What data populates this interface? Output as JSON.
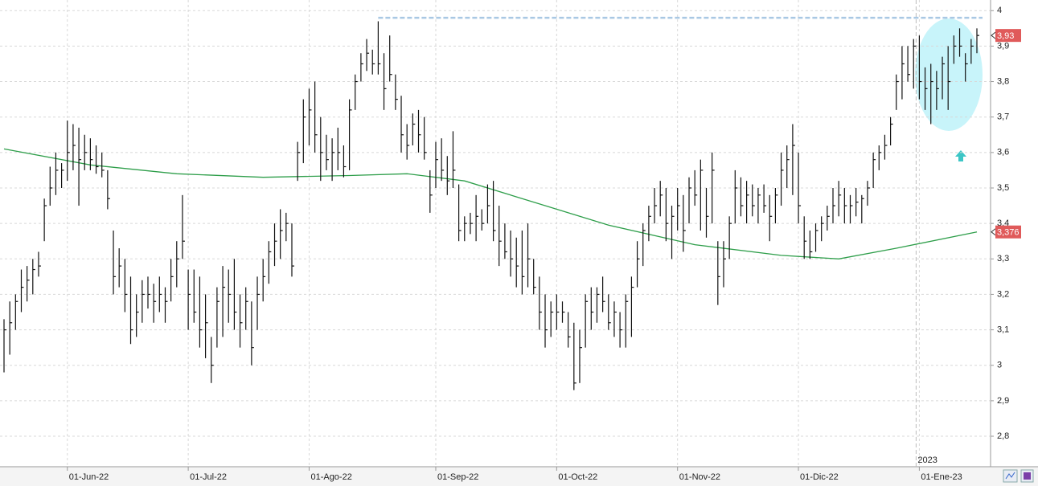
{
  "chart_data": {
    "type": "ohlc",
    "categories": [
      null,
      null,
      null,
      null,
      null,
      null,
      null,
      null,
      null,
      null,
      null,
      "01-Jun-22",
      null,
      null,
      null,
      null,
      null,
      null,
      null,
      null,
      null,
      null,
      null,
      null,
      null,
      null,
      null,
      null,
      null,
      null,
      null,
      null,
      "01-Jul-22",
      null,
      null,
      null,
      null,
      null,
      null,
      null,
      null,
      null,
      null,
      null,
      null,
      null,
      null,
      null,
      null,
      null,
      null,
      null,
      null,
      "01-Ago-22",
      null,
      null,
      null,
      null,
      null,
      null,
      null,
      null,
      null,
      null,
      null,
      null,
      null,
      null,
      null,
      null,
      null,
      null,
      null,
      null,
      null,
      "01-Sep-22",
      null,
      null,
      null,
      null,
      null,
      null,
      null,
      null,
      null,
      null,
      null,
      null,
      null,
      null,
      null,
      null,
      null,
      null,
      null,
      null,
      "01-Oct-22",
      null,
      null,
      null,
      null,
      null,
      null,
      null,
      null,
      null,
      null,
      null,
      null,
      null,
      null,
      null,
      null,
      null,
      null,
      null,
      null,
      "01-Nov-22",
      null,
      null,
      null,
      null,
      null,
      null,
      null,
      null,
      null,
      null,
      null,
      null,
      null,
      null,
      null,
      null,
      null,
      null,
      null,
      null,
      "01-Dic-22",
      null,
      null,
      null,
      null,
      null,
      null,
      null,
      null,
      null,
      null,
      null,
      null,
      null,
      null,
      null,
      null,
      null,
      null,
      null,
      null,
      "01-Ene-23",
      null,
      null,
      null,
      null,
      null,
      null,
      null,
      null,
      null,
      null
    ],
    "high": [
      3.13,
      3.18,
      3.2,
      3.27,
      3.28,
      3.3,
      3.32,
      3.47,
      3.56,
      3.6,
      3.57,
      3.69,
      3.68,
      3.67,
      3.65,
      3.64,
      3.62,
      3.6,
      3.55,
      3.38,
      3.33,
      3.3,
      3.25,
      3.2,
      3.24,
      3.25,
      3.23,
      3.25,
      3.22,
      3.3,
      3.35,
      3.48,
      3.27,
      3.27,
      3.25,
      3.2,
      3.08,
      3.22,
      3.28,
      3.27,
      3.3,
      3.2,
      3.22,
      3.18,
      3.25,
      3.3,
      3.35,
      3.4,
      3.44,
      3.43,
      3.4,
      3.63,
      3.75,
      3.78,
      3.8,
      3.7,
      3.65,
      3.64,
      3.67,
      3.62,
      3.75,
      3.82,
      3.88,
      3.92,
      3.89,
      3.97,
      3.88,
      3.93,
      3.82,
      3.76,
      3.68,
      3.71,
      3.72,
      3.7,
      3.55,
      3.63,
      3.64,
      3.59,
      3.66,
      3.51,
      3.42,
      3.43,
      3.48,
      3.44,
      3.51,
      3.52,
      3.45,
      3.4,
      3.38,
      3.36,
      3.38,
      3.4,
      3.3,
      3.25,
      3.2,
      3.18,
      3.2,
      3.18,
      3.15,
      3.12,
      3.1,
      3.2,
      3.22,
      3.22,
      3.25,
      3.2,
      3.18,
      3.15,
      3.2,
      3.25,
      3.35,
      3.4,
      3.45,
      3.5,
      3.52,
      3.5,
      3.45,
      3.5,
      3.48,
      3.53,
      3.55,
      3.58,
      3.5,
      3.6,
      3.35,
      3.35,
      3.42,
      3.55,
      3.53,
      3.52,
      3.51,
      3.5,
      3.51,
      3.48,
      3.5,
      3.6,
      3.62,
      3.68,
      3.6,
      3.42,
      3.38,
      3.4,
      3.42,
      3.45,
      3.5,
      3.52,
      3.5,
      3.48,
      3.5,
      3.48,
      3.52,
      3.6,
      3.62,
      3.65,
      3.7,
      3.82,
      3.9,
      3.9,
      3.92,
      3.93,
      3.84,
      3.85,
      3.83,
      3.87,
      3.9,
      3.93,
      3.95,
      3.88,
      3.92,
      3.95
    ],
    "low": [
      2.98,
      3.03,
      3.1,
      3.15,
      3.18,
      3.2,
      3.25,
      3.35,
      3.45,
      3.48,
      3.5,
      3.52,
      3.55,
      3.45,
      3.55,
      3.55,
      3.54,
      3.53,
      3.44,
      3.2,
      3.22,
      3.15,
      3.06,
      3.08,
      3.12,
      3.16,
      3.12,
      3.15,
      3.12,
      3.18,
      3.22,
      3.3,
      3.1,
      3.12,
      3.05,
      3.02,
      2.95,
      3.05,
      3.08,
      3.12,
      3.1,
      3.05,
      3.1,
      3.0,
      3.1,
      3.18,
      3.23,
      3.28,
      3.3,
      3.35,
      3.25,
      3.52,
      3.57,
      3.62,
      3.6,
      3.52,
      3.55,
      3.52,
      3.55,
      3.53,
      3.55,
      3.72,
      3.8,
      3.83,
      3.82,
      3.82,
      3.72,
      3.8,
      3.72,
      3.6,
      3.58,
      3.62,
      3.6,
      3.58,
      3.43,
      3.5,
      3.52,
      3.48,
      3.5,
      3.35,
      3.35,
      3.37,
      3.35,
      3.38,
      3.4,
      3.35,
      3.28,
      3.3,
      3.25,
      3.22,
      3.2,
      3.22,
      3.2,
      3.1,
      3.05,
      3.08,
      3.1,
      3.12,
      3.05,
      2.93,
      2.95,
      3.05,
      3.1,
      3.12,
      3.15,
      3.1,
      3.08,
      3.05,
      3.05,
      3.08,
      3.22,
      3.28,
      3.35,
      3.4,
      3.42,
      3.35,
      3.3,
      3.38,
      3.32,
      3.4,
      3.45,
      3.38,
      3.36,
      3.4,
      3.17,
      3.22,
      3.3,
      3.4,
      3.42,
      3.4,
      3.42,
      3.4,
      3.43,
      3.35,
      3.4,
      3.45,
      3.5,
      3.48,
      3.4,
      3.3,
      3.3,
      3.32,
      3.35,
      3.38,
      3.4,
      3.42,
      3.4,
      3.4,
      3.42,
      3.4,
      3.45,
      3.5,
      3.55,
      3.58,
      3.62,
      3.72,
      3.75,
      3.8,
      3.78,
      3.75,
      3.72,
      3.68,
      3.72,
      3.75,
      3.72,
      3.85,
      3.87,
      3.8,
      3.85,
      3.88
    ],
    "close": [
      3.1,
      3.12,
      3.18,
      3.22,
      3.24,
      3.27,
      3.28,
      3.45,
      3.5,
      3.55,
      3.55,
      3.6,
      3.62,
      3.58,
      3.6,
      3.58,
      3.56,
      3.55,
      3.47,
      3.25,
      3.28,
      3.2,
      3.1,
      3.15,
      3.2,
      3.2,
      3.18,
      3.2,
      3.18,
      3.25,
      3.3,
      3.35,
      3.2,
      3.15,
      3.1,
      3.12,
      3.0,
      3.18,
      3.22,
      3.2,
      3.15,
      3.12,
      3.18,
      3.05,
      3.2,
      3.25,
      3.32,
      3.35,
      3.38,
      3.4,
      3.28,
      3.6,
      3.7,
      3.72,
      3.65,
      3.6,
      3.58,
      3.6,
      3.6,
      3.56,
      3.72,
      3.8,
      3.85,
      3.88,
      3.85,
      3.85,
      3.78,
      3.82,
      3.75,
      3.65,
      3.62,
      3.68,
      3.65,
      3.6,
      3.48,
      3.58,
      3.55,
      3.52,
      3.55,
      3.38,
      3.4,
      3.4,
      3.42,
      3.4,
      3.45,
      3.38,
      3.35,
      3.32,
      3.3,
      3.28,
      3.25,
      3.3,
      3.22,
      3.15,
      3.1,
      3.15,
      3.15,
      3.15,
      3.08,
      2.95,
      3.05,
      3.18,
      3.15,
      3.2,
      3.18,
      3.12,
      3.15,
      3.1,
      3.18,
      3.22,
      3.3,
      3.38,
      3.42,
      3.45,
      3.48,
      3.4,
      3.42,
      3.45,
      3.38,
      3.5,
      3.48,
      3.55,
      3.42,
      3.55,
      3.25,
      3.3,
      3.4,
      3.5,
      3.45,
      3.48,
      3.45,
      3.48,
      3.45,
      3.42,
      3.48,
      3.55,
      3.58,
      3.62,
      3.45,
      3.35,
      3.32,
      3.38,
      3.4,
      3.42,
      3.45,
      3.48,
      3.45,
      3.45,
      3.46,
      3.47,
      3.5,
      3.58,
      3.6,
      3.62,
      3.68,
      3.8,
      3.85,
      3.82,
      3.9,
      3.8,
      3.78,
      3.8,
      3.78,
      3.85,
      3.8,
      3.9,
      3.9,
      3.85,
      3.9,
      3.93
    ],
    "bar_color": "#111111",
    "moving_average": {
      "x": [
        0,
        15,
        30,
        45,
        60,
        70,
        80,
        90,
        105,
        120,
        135,
        145,
        155,
        169
      ],
      "values": [
        3.61,
        3.565,
        3.54,
        3.53,
        3.535,
        3.54,
        3.52,
        3.47,
        3.395,
        3.34,
        3.31,
        3.3,
        3.33,
        3.376
      ],
      "color": "#2e9e4a"
    },
    "reference_line": {
      "value": 3.98,
      "start": 65,
      "color": "#a9c8e4"
    },
    "ylim": [
      2.714,
      4.03
    ],
    "yticks": [
      {
        "value": 2.8,
        "label": "2,8"
      },
      {
        "value": 2.9,
        "label": "2,9"
      },
      3,
      {
        "value": 3.1,
        "label": "3,1"
      },
      {
        "value": 3.2,
        "label": "3,2"
      },
      {
        "value": 3.3,
        "label": "3,3"
      },
      {
        "value": 3.4,
        "label": "3,4"
      },
      {
        "value": 3.5,
        "label": "3,5"
      },
      {
        "value": 3.6,
        "label": "3,6"
      },
      {
        "value": 3.7,
        "label": "3,7"
      },
      {
        "value": 3.8,
        "label": "3,8"
      },
      {
        "value": 3.9,
        "label": "3,9"
      },
      4
    ],
    "last_values": [
      {
        "value": 3.93,
        "label": "3,93"
      },
      {
        "value": 3.376,
        "label": "3,376"
      }
    ],
    "year_marker": {
      "label": "2023",
      "at": 159
    },
    "grid": true
  }
}
